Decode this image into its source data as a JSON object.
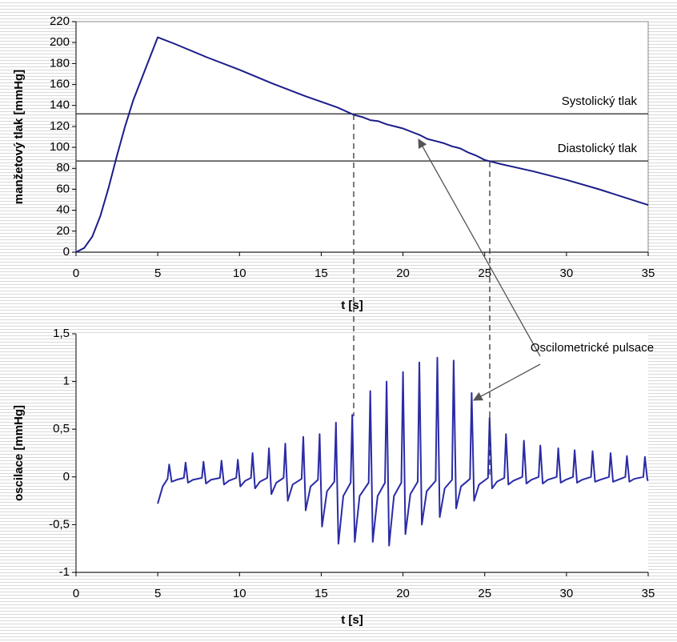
{
  "chart_data": [
    {
      "type": "line",
      "x_label": "t [s]",
      "y_label": "manžetový tlak [mmHg]",
      "x": [
        0,
        0.5,
        1,
        1.5,
        2,
        2.5,
        3,
        3.5,
        4,
        4.5,
        5,
        6,
        8,
        10,
        12,
        14,
        16,
        17,
        17.5,
        18,
        18.5,
        19,
        19.5,
        20,
        20.5,
        21,
        21.5,
        22,
        22.5,
        23,
        23.5,
        24,
        24.5,
        25,
        26,
        28,
        30,
        32,
        35
      ],
      "values": [
        0,
        4,
        15,
        35,
        62,
        92,
        120,
        145,
        165,
        185,
        205,
        199,
        186,
        174,
        161,
        149,
        138,
        131,
        129,
        126,
        125,
        122,
        120,
        118,
        115,
        112,
        108,
        106,
        104,
        101,
        99,
        95,
        92,
        88,
        84,
        77,
        69,
        60,
        45
      ],
      "color": "#1c1c8a",
      "xlim": [
        0,
        35
      ],
      "xticks": [
        0,
        5,
        10,
        15,
        20,
        25,
        30,
        35
      ],
      "ylim": [
        0,
        220
      ],
      "yticks": [
        0,
        20,
        40,
        60,
        80,
        100,
        120,
        140,
        160,
        180,
        200,
        220
      ],
      "reference_lines": [
        {
          "label": "Systolický tlak",
          "value": 132
        },
        {
          "label": "Diastolický tlak",
          "value": 87
        }
      ]
    },
    {
      "type": "line",
      "x_label": "t [s]",
      "y_label": "oscilace [mmHg]",
      "annotation": "Oscilometrické pulsace",
      "x": [
        5.0,
        5.3,
        5.6,
        5.7,
        5.85,
        6.15,
        6.6,
        6.7,
        6.85,
        7.15,
        7.7,
        7.8,
        7.95,
        8.25,
        8.8,
        8.9,
        9.05,
        9.35,
        9.8,
        9.9,
        10.05,
        10.35,
        10.7,
        10.8,
        10.95,
        11.25,
        11.7,
        11.8,
        11.95,
        12.25,
        12.7,
        12.8,
        12.95,
        13.25,
        13.8,
        13.9,
        14.05,
        14.35,
        14.8,
        14.9,
        15.05,
        15.35,
        15.8,
        15.9,
        16.05,
        16.35,
        16.8,
        16.9,
        17.05,
        17.35,
        17.9,
        18.0,
        18.15,
        18.45,
        18.9,
        19.0,
        19.15,
        19.45,
        19.9,
        20.0,
        20.15,
        20.45,
        20.9,
        21.0,
        21.15,
        21.45,
        22.0,
        22.1,
        22.25,
        22.55,
        23.0,
        23.1,
        23.25,
        23.55,
        24.1,
        24.2,
        24.35,
        24.65,
        25.2,
        25.3,
        25.45,
        25.75,
        26.2,
        26.3,
        26.45,
        26.75,
        27.3,
        27.4,
        27.55,
        27.85,
        28.3,
        28.4,
        28.55,
        28.85,
        29.4,
        29.5,
        29.65,
        29.95,
        30.4,
        30.5,
        30.65,
        30.95,
        31.5,
        31.6,
        31.75,
        32.05,
        32.6,
        32.7,
        32.85,
        33.15,
        33.6,
        33.7,
        33.85,
        34.15,
        34.7,
        34.8,
        34.95,
        35.0
      ],
      "values": [
        -0.28,
        -0.1,
        -0.02,
        0.13,
        -0.05,
        -0.03,
        -0.01,
        0.15,
        -0.06,
        -0.03,
        -0.01,
        0.16,
        -0.07,
        -0.03,
        -0.01,
        0.17,
        -0.08,
        -0.04,
        -0.01,
        0.18,
        -0.1,
        -0.04,
        -0.01,
        0.25,
        -0.12,
        -0.05,
        -0.01,
        0.3,
        -0.18,
        -0.06,
        -0.01,
        0.35,
        -0.25,
        -0.08,
        -0.02,
        0.42,
        -0.35,
        -0.1,
        -0.03,
        0.45,
        -0.52,
        -0.15,
        -0.05,
        0.57,
        -0.7,
        -0.2,
        -0.06,
        0.65,
        -0.68,
        -0.2,
        -0.06,
        0.9,
        -0.68,
        -0.2,
        -0.06,
        1.0,
        -0.72,
        -0.2,
        -0.06,
        1.1,
        -0.6,
        -0.18,
        -0.05,
        1.2,
        -0.5,
        -0.15,
        -0.04,
        1.25,
        -0.42,
        -0.12,
        -0.03,
        1.22,
        -0.33,
        -0.1,
        -0.02,
        0.88,
        -0.25,
        -0.08,
        -0.01,
        0.62,
        -0.12,
        -0.05,
        -0.01,
        0.45,
        -0.08,
        -0.04,
        0,
        0.38,
        -0.07,
        -0.03,
        0,
        0.33,
        -0.07,
        -0.03,
        0,
        0.3,
        -0.06,
        -0.03,
        0,
        0.28,
        -0.06,
        -0.03,
        0,
        0.27,
        -0.05,
        -0.03,
        0,
        0.25,
        -0.05,
        -0.03,
        0,
        0.22,
        -0.05,
        -0.02,
        0,
        0.21,
        -0.03,
        -0.04
      ],
      "color": "#2b2ba6",
      "xlim": [
        0,
        35
      ],
      "xticks": [
        0,
        5,
        10,
        15,
        20,
        25,
        30,
        35
      ],
      "ylim": [
        -1,
        1.5
      ],
      "yticks": [
        -1,
        {
          "value": -0.5,
          "label": "-0,5"
        },
        0,
        {
          "value": 0.5,
          "label": "0,5"
        },
        1,
        {
          "value": 1.5,
          "label": "1,5"
        }
      ]
    }
  ]
}
